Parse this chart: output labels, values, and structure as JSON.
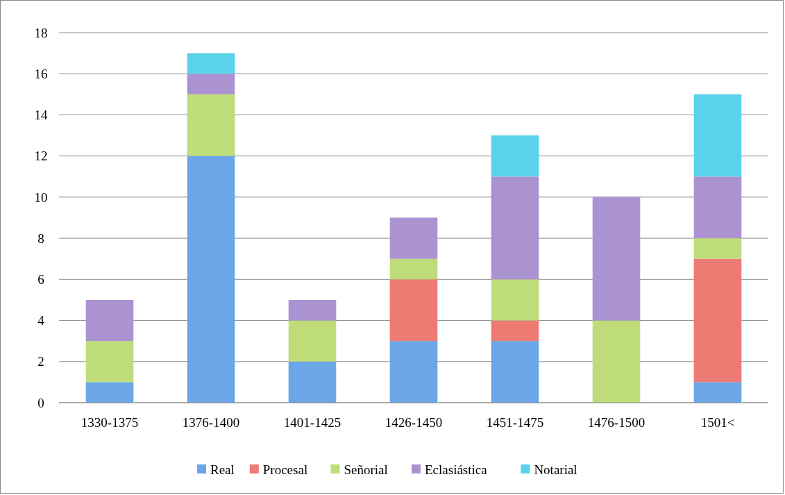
{
  "chart_data": {
    "type": "bar",
    "stacked": true,
    "categories": [
      "1330-1375",
      "1376-1400",
      "1401-1425",
      "1426-1450",
      "1451-1475",
      "1476-1500",
      "1501<"
    ],
    "series": [
      {
        "name": "Real",
        "color": "#6aa6e8",
        "values": [
          1,
          12,
          2,
          3,
          3,
          0,
          1
        ]
      },
      {
        "name": "Procesal",
        "color": "#ee7b73",
        "values": [
          0,
          0,
          0,
          3,
          1,
          0,
          6
        ]
      },
      {
        "name": "Señorial",
        "color": "#bfdc7a",
        "values": [
          2,
          3,
          2,
          1,
          2,
          4,
          1
        ]
      },
      {
        "name": "Eclasiástica",
        "color": "#ab93d2",
        "values": [
          2,
          1,
          1,
          2,
          5,
          6,
          3
        ]
      },
      {
        "name": "Notarial",
        "color": "#5ad2ea",
        "values": [
          0,
          1,
          0,
          0,
          2,
          0,
          4
        ]
      }
    ],
    "ylim": [
      0,
      18
    ],
    "yticks": [
      0,
      2,
      4,
      6,
      8,
      10,
      12,
      14,
      16,
      18
    ],
    "grid": "y",
    "legend": "bottom"
  }
}
